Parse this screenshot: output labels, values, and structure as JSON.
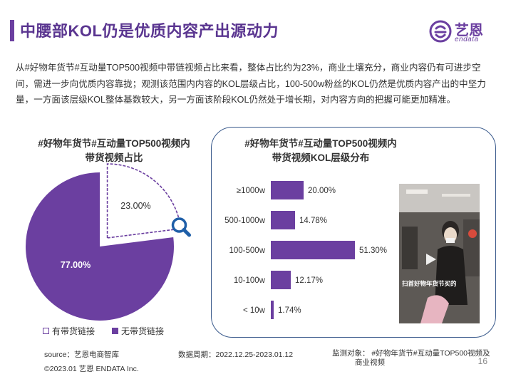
{
  "header": {
    "title": "中腰部KOL仍是优质内容产出源动力",
    "logo_cn": "艺恩",
    "logo_en": "endata"
  },
  "intro": "从#好物年货节#互动量TOP500视频中带链视频占比来看，整体占比约为23%，商业土壤充分，商业内容仍有可进步空间，需进一步向优质内容靠拢；观测该范围内内容的KOL层级占比，100-500w粉丝的KOL仍然是优质内容产出的中坚力量，一方面该层级KOL整体基数较大，另一方面该阶段KOL仍然处于增长期，对内容方向的把握可能更加精准。",
  "colors": {
    "accent": "#6b3fa0",
    "panel_border": "#3a5a8c"
  },
  "chart_data": [
    {
      "type": "pie",
      "title_line1": "#好物年货节#互动量TOP500视频内",
      "title_line2": "带货视频占比",
      "slices": [
        {
          "label": "有带货链接",
          "value": 23.0,
          "display": "23.00%"
        },
        {
          "label": "无带货链接",
          "value": 77.0,
          "display": "77.00%"
        }
      ],
      "legend_position": "bottom"
    },
    {
      "type": "bar",
      "orientation": "horizontal",
      "title_line1": "#好物年货节#互动量TOP500视频内",
      "title_line2": "带货视频KOL层级分布",
      "categories": [
        "≥1000w",
        "500-1000w",
        "100-500w",
        "10-100w",
        "< 10w"
      ],
      "values": [
        20.0,
        14.78,
        51.3,
        12.17,
        1.74
      ],
      "labels": [
        "20.00%",
        "14.78%",
        "51.30%",
        "12.17%",
        "1.74%"
      ]
    }
  ],
  "photo": {
    "caption": "扫首好物年货节买的"
  },
  "footer": {
    "source": "source：艺恩电商智库",
    "period": "数据周期：2022.12.25-2023.01.12",
    "object_line1": "监测对象：  #好物年货节#互动量TOP500视频及",
    "object_line2": "商业视频",
    "copyright": "©2023.01 艺恩 ENDATA Inc.",
    "page": "16"
  }
}
